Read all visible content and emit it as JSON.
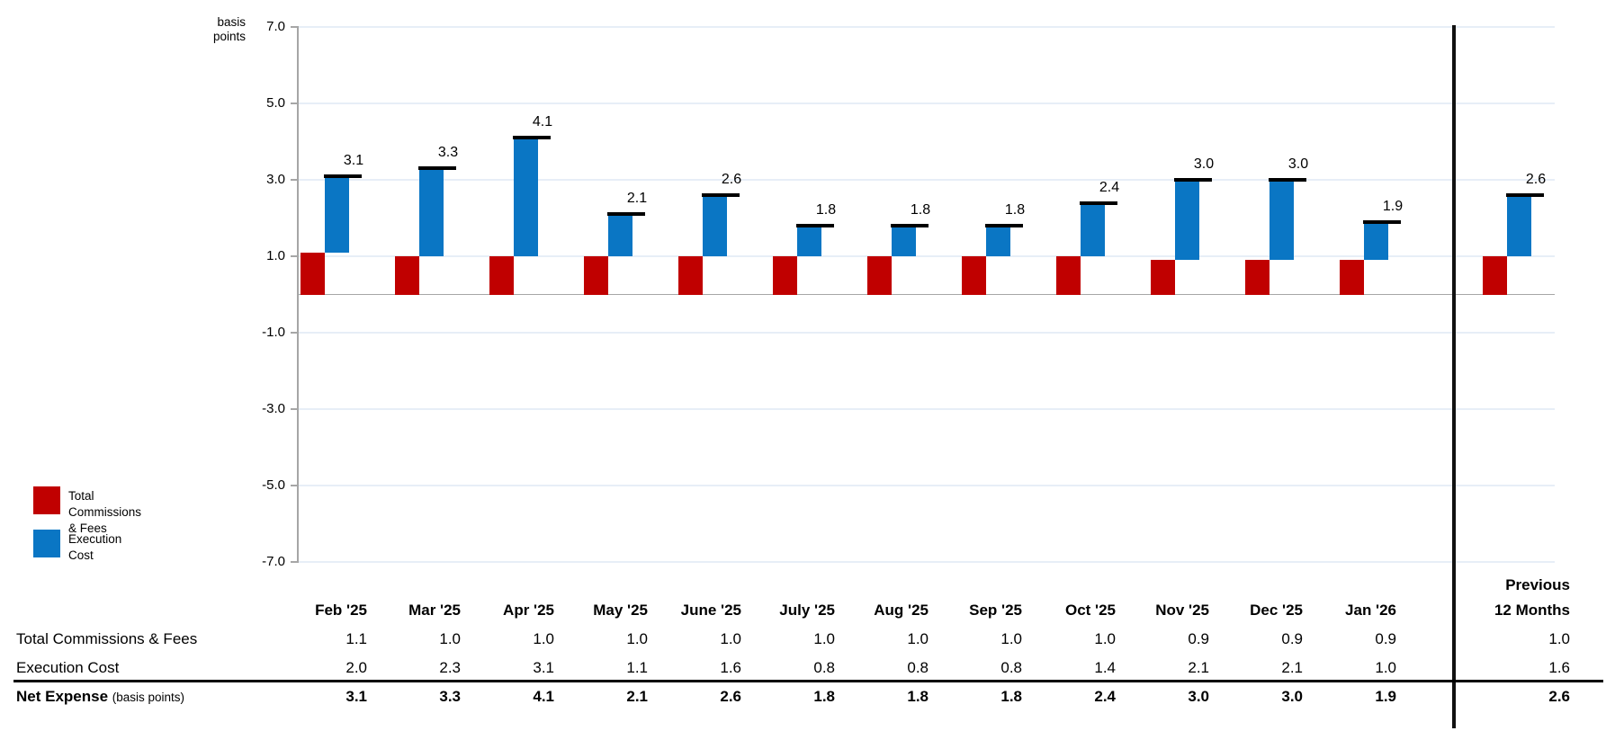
{
  "chart": {
    "unit_label": {
      "line1": "basis",
      "line2": "points"
    }
  },
  "legend": {
    "items": [
      {
        "label_line1": "Total Commissions",
        "label_line2": "& Fees",
        "color": "#c00000"
      },
      {
        "label_line1": "Execution",
        "label_line2": "Cost",
        "color": "#0a76c4"
      }
    ]
  },
  "chart_data": {
    "type": "bar",
    "variant": "offset-stacked-columns-with-total-cap-markers",
    "unit": "basis points",
    "title": "",
    "xlabel": "",
    "ylabel": "basis points",
    "categories": [
      "Feb '25",
      "Mar '25",
      "Apr '25",
      "May '25",
      "June '25",
      "July '25",
      "Aug '25",
      "Sep '25",
      "Oct '25",
      "Nov '25",
      "Dec '25",
      "Jan '26",
      "Previous 12 Months"
    ],
    "series": [
      {
        "name": "Total Commissions & Fees",
        "color": "#c00000",
        "values": [
          1.1,
          1.0,
          1.0,
          1.0,
          1.0,
          1.0,
          1.0,
          1.0,
          1.0,
          0.9,
          0.9,
          0.9,
          1.0
        ]
      },
      {
        "name": "Execution Cost",
        "color": "#0a76c4",
        "values": [
          2.0,
          2.3,
          3.1,
          1.1,
          1.6,
          0.8,
          0.8,
          0.8,
          1.4,
          2.1,
          2.1,
          1.0,
          1.6
        ]
      }
    ],
    "totals": {
      "name": "Net Expense",
      "values": [
        3.1,
        3.3,
        4.1,
        2.1,
        2.6,
        1.8,
        1.8,
        1.8,
        2.4,
        3.0,
        3.0,
        1.9,
        2.6
      ]
    },
    "y_axis": {
      "min": -7.0,
      "max": 7.0,
      "ticks": [
        7.0,
        5.0,
        3.0,
        1.0,
        -1.0,
        -3.0,
        -5.0,
        -7.0
      ]
    },
    "gridlines": true,
    "legend_position": "middle-left",
    "divider_before_category": "Previous 12 Months"
  },
  "table": {
    "column_headers": [
      "Feb '25",
      "Mar '25",
      "Apr '25",
      "May '25",
      "June '25",
      "July '25",
      "Aug '25",
      "Sep '25",
      "Oct '25",
      "Nov '25",
      "Dec '25",
      "Jan '26"
    ],
    "summary_column_header": {
      "line1": "Previous",
      "line2": "12 Months"
    },
    "rows": [
      {
        "label": "Total Commissions & Fees",
        "emphasis": false,
        "values": [
          "1.1",
          "1.0",
          "1.0",
          "1.0",
          "1.0",
          "1.0",
          "1.0",
          "1.0",
          "1.0",
          "0.9",
          "0.9",
          "0.9"
        ],
        "summary_value": "1.0"
      },
      {
        "label": "Execution Cost",
        "emphasis": false,
        "values": [
          "2.0",
          "2.3",
          "3.1",
          "1.1",
          "1.6",
          "0.8",
          "0.8",
          "0.8",
          "1.4",
          "2.1",
          "2.1",
          "1.0"
        ],
        "summary_value": "1.6"
      },
      {
        "label": "Net Expense",
        "label_note": "(basis points)",
        "emphasis": true,
        "values": [
          "3.1",
          "3.3",
          "4.1",
          "2.1",
          "2.6",
          "1.8",
          "1.8",
          "1.8",
          "2.4",
          "3.0",
          "3.0",
          "1.9"
        ],
        "summary_value": "2.6"
      }
    ]
  },
  "colors": {
    "tcf_red": "#c00000",
    "exec_blue": "#0a76c4",
    "gridline": "#e7eef7",
    "axis_gray": "#a6a6a6",
    "cap_black": "#000000",
    "divider_black": "#111111",
    "text_black": "#000000"
  }
}
